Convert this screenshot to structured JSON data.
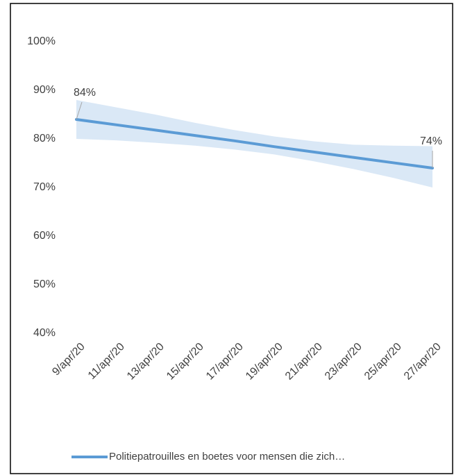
{
  "chart_data": {
    "type": "line",
    "categories": [
      "9/apr/20",
      "11/apr/20",
      "13/apr/20",
      "15/apr/20",
      "17/apr/20",
      "19/apr/20",
      "21/apr/20",
      "23/apr/20",
      "25/apr/20",
      "27/apr/20"
    ],
    "series": [
      {
        "name": "Politiepatrouilles en boetes voor mensen die zich…",
        "color": "#5b9bd5",
        "values": [
          84,
          82.9,
          81.8,
          80.7,
          79.6,
          78.4,
          77.3,
          76.2,
          75.1,
          74
        ],
        "value_labels": [
          "84%",
          null,
          null,
          null,
          null,
          null,
          null,
          null,
          null,
          "74%"
        ]
      }
    ],
    "band_upper": [
      88,
      86.5,
      85,
      83.3,
      81.8,
      80.5,
      79.5,
      78.8,
      78.6,
      78.5
    ],
    "band_lower": [
      80,
      79.7,
      79.2,
      78.6,
      77.8,
      76.8,
      75.4,
      73.8,
      72,
      70
    ],
    "band_color": "#dae8f6",
    "ylim": [
      40,
      100
    ],
    "yticks": [
      {
        "value": 40,
        "label": "40%"
      },
      {
        "value": 50,
        "label": "50%"
      },
      {
        "value": 60,
        "label": "60%"
      },
      {
        "value": 70,
        "label": "70%"
      },
      {
        "value": 80,
        "label": "80%"
      },
      {
        "value": 90,
        "label": "90%"
      },
      {
        "value": 100,
        "label": "100%"
      }
    ],
    "legend": "bottom"
  }
}
